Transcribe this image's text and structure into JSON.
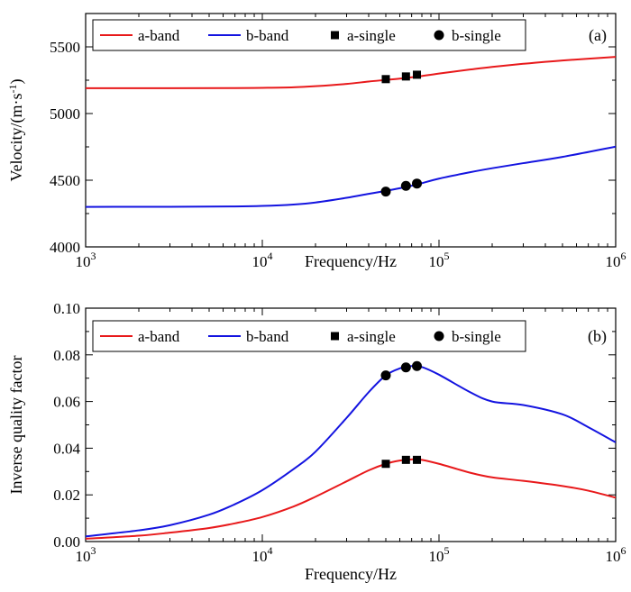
{
  "chart_data": [
    {
      "type": "line",
      "panel_label": "(a)",
      "xlabel": "Frequency/Hz",
      "ylabel": "Velocity/(m·s",
      "ylabel_sup": "-1",
      "ylabel_end": ")",
      "xscale": "log",
      "xlim": [
        1000,
        1000000
      ],
      "ylim": [
        4000,
        5750
      ],
      "xticks": [
        {
          "value": 1000,
          "base": "10",
          "exp": "3"
        },
        {
          "value": 10000,
          "base": "10",
          "exp": "4"
        },
        {
          "value": 100000,
          "base": "10",
          "exp": "5"
        },
        {
          "value": 1000000,
          "base": "10",
          "exp": "6"
        }
      ],
      "yticks": [
        {
          "value": 4000,
          "label": "4000"
        },
        {
          "value": 4500,
          "label": "4500"
        },
        {
          "value": 5000,
          "label": "5000"
        },
        {
          "value": 5500,
          "label": "5500"
        }
      ],
      "legend": {
        "placement": "top",
        "entries": [
          {
            "label": "a-band",
            "kind": "line",
            "color": "#e8191b"
          },
          {
            "label": "b-band",
            "kind": "line",
            "color": "#1414e0"
          },
          {
            "label": "a-single",
            "kind": "square",
            "color": "#000000"
          },
          {
            "label": "b-single",
            "kind": "circle",
            "color": "#000000"
          }
        ]
      },
      "series": [
        {
          "name": "a-band",
          "kind": "line",
          "color": "#e8191b",
          "x": [
            1000,
            3000,
            7000,
            10000,
            15000,
            20000,
            30000,
            40000,
            50000,
            60000,
            75000,
            100000,
            150000,
            200000,
            300000,
            500000,
            1000000
          ],
          "y": [
            5190,
            5190,
            5191,
            5193,
            5197,
            5205,
            5222,
            5240,
            5252,
            5262,
            5276,
            5300,
            5330,
            5350,
            5373,
            5398,
            5425
          ]
        },
        {
          "name": "b-band",
          "kind": "line",
          "color": "#1414e0",
          "x": [
            1000,
            3000,
            7000,
            10000,
            15000,
            20000,
            30000,
            40000,
            50000,
            60000,
            75000,
            100000,
            150000,
            200000,
            300000,
            500000,
            1000000
          ],
          "y": [
            4300,
            4301,
            4303,
            4307,
            4318,
            4333,
            4368,
            4398,
            4420,
            4440,
            4468,
            4512,
            4560,
            4590,
            4628,
            4675,
            4752
          ]
        },
        {
          "name": "a-single",
          "kind": "square",
          "color": "#000000",
          "x": [
            50000,
            65000,
            75000
          ],
          "y": [
            5258,
            5278,
            5291
          ]
        },
        {
          "name": "b-single",
          "kind": "circle",
          "color": "#000000",
          "x": [
            50000,
            65000,
            75000
          ],
          "y": [
            4415,
            4458,
            4475
          ]
        }
      ]
    },
    {
      "type": "line",
      "panel_label": "(b)",
      "xlabel": "Frequency/Hz",
      "ylabel": "Inverse quality factor",
      "xscale": "log",
      "xlim": [
        1000,
        1000000
      ],
      "ylim": [
        0,
        0.1
      ],
      "xticks": [
        {
          "value": 1000,
          "base": "10",
          "exp": "3"
        },
        {
          "value": 10000,
          "base": "10",
          "exp": "4"
        },
        {
          "value": 100000,
          "base": "10",
          "exp": "5"
        },
        {
          "value": 1000000,
          "base": "10",
          "exp": "6"
        }
      ],
      "yticks": [
        {
          "value": 0,
          "label": "0.00"
        },
        {
          "value": 0.02,
          "label": "0.02"
        },
        {
          "value": 0.04,
          "label": "0.04"
        },
        {
          "value": 0.06,
          "label": "0.06"
        },
        {
          "value": 0.08,
          "label": "0.08"
        },
        {
          "value": 0.1,
          "label": "0.10"
        }
      ],
      "legend": {
        "placement": "top",
        "entries": [
          {
            "label": "a-band",
            "kind": "line",
            "color": "#e8191b"
          },
          {
            "label": "b-band",
            "kind": "line",
            "color": "#1414e0"
          },
          {
            "label": "a-single",
            "kind": "square",
            "color": "#000000"
          },
          {
            "label": "b-single",
            "kind": "circle",
            "color": "#000000"
          }
        ]
      },
      "series": [
        {
          "name": "a-band",
          "kind": "line",
          "color": "#e8191b",
          "x": [
            1000,
            2000,
            3000,
            5000,
            7000,
            10000,
            15000,
            20000,
            30000,
            40000,
            50000,
            60000,
            70000,
            80000,
            100000,
            150000,
            200000,
            300000,
            500000,
            700000,
            1000000
          ],
          "y": [
            0.0012,
            0.0025,
            0.0038,
            0.0058,
            0.0078,
            0.0105,
            0.015,
            0.0192,
            0.0258,
            0.0305,
            0.0333,
            0.0347,
            0.0352,
            0.035,
            0.0333,
            0.0295,
            0.0275,
            0.026,
            0.0238,
            0.0218,
            0.0188
          ]
        },
        {
          "name": "b-band",
          "kind": "line",
          "color": "#1414e0",
          "x": [
            1000,
            2000,
            3000,
            5000,
            7000,
            10000,
            15000,
            20000,
            30000,
            40000,
            50000,
            60000,
            70000,
            80000,
            100000,
            150000,
            200000,
            300000,
            500000,
            700000,
            1000000
          ],
          "y": [
            0.0022,
            0.0048,
            0.007,
            0.0115,
            0.016,
            0.022,
            0.031,
            0.0385,
            0.053,
            0.064,
            0.0712,
            0.0742,
            0.0752,
            0.0748,
            0.0715,
            0.064,
            0.06,
            0.0585,
            0.0545,
            0.049,
            0.0425
          ]
        },
        {
          "name": "a-single",
          "kind": "square",
          "color": "#000000",
          "x": [
            50000,
            65000,
            75000
          ],
          "y": [
            0.0333,
            0.035,
            0.035
          ]
        },
        {
          "name": "b-single",
          "kind": "circle",
          "color": "#000000",
          "x": [
            50000,
            65000,
            75000
          ],
          "y": [
            0.0712,
            0.0746,
            0.0752
          ]
        }
      ]
    }
  ]
}
